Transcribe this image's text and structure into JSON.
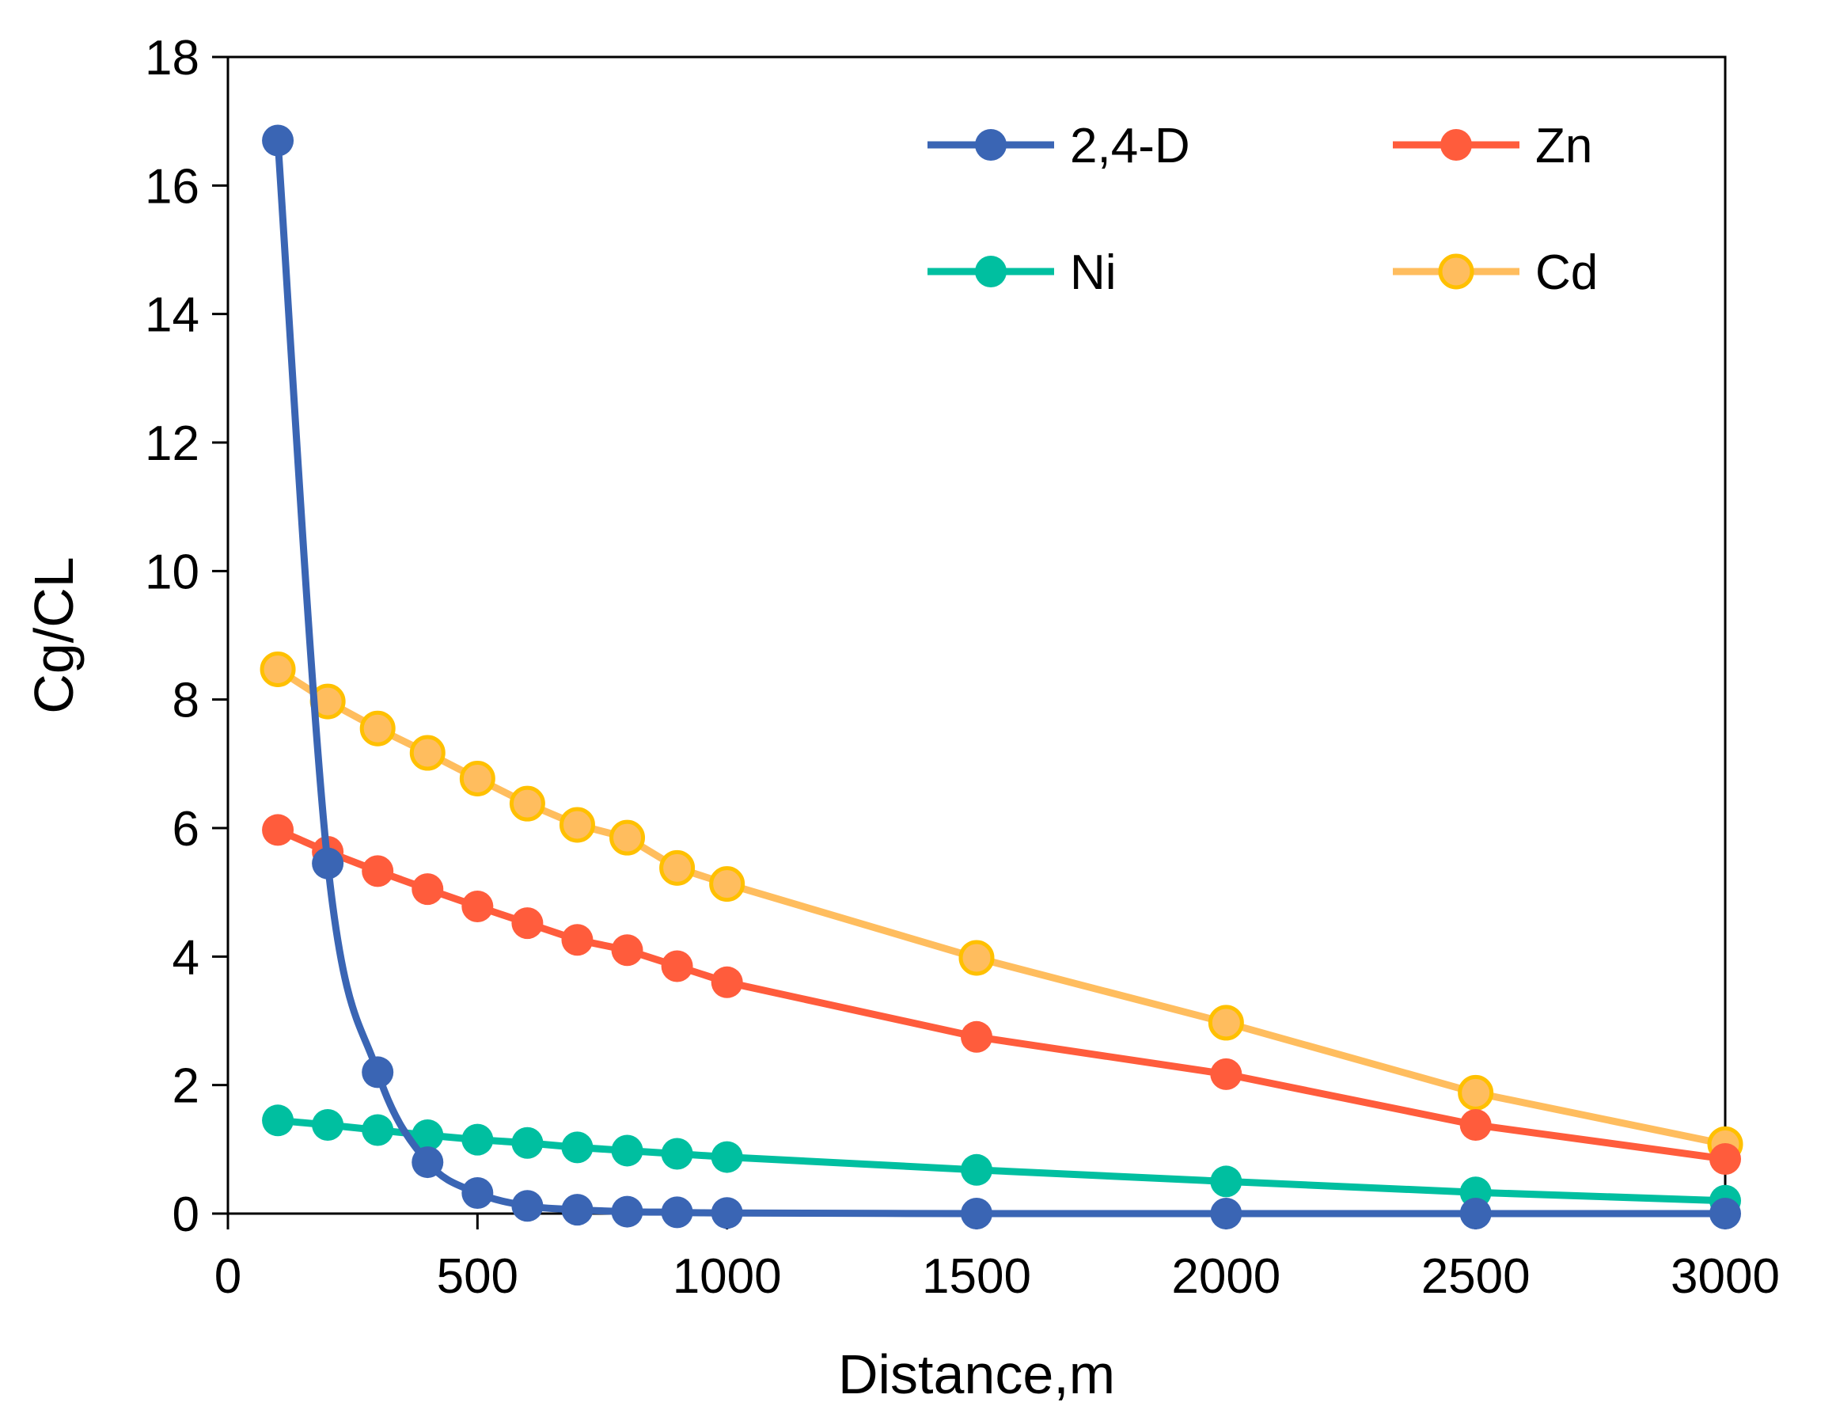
{
  "chart_data": {
    "type": "line",
    "title": "",
    "xlabel": "Distance,m",
    "ylabel": "Cg/CL",
    "xlim": [
      0,
      3000
    ],
    "ylim": [
      0,
      18
    ],
    "x_ticks": [
      "0",
      "500",
      "1000",
      "1500",
      "2000",
      "2500",
      "3000"
    ],
    "y_ticks": [
      "0",
      "2",
      "4",
      "6",
      "8",
      "10",
      "12",
      "14",
      "16",
      "18"
    ],
    "grid": false,
    "legend_position": "top-right",
    "x": [
      100,
      200,
      300,
      400,
      500,
      600,
      700,
      800,
      900,
      1000,
      1500,
      2000,
      2500,
      3000
    ],
    "series": [
      {
        "name": "2,4-D",
        "color": "#3a65b4",
        "values": [
          16.7,
          5.45,
          2.2,
          0.8,
          0.32,
          0.12,
          0.06,
          0.03,
          0.02,
          0.01,
          0.0,
          0.0,
          0.0,
          0.0
        ],
        "smooth": true
      },
      {
        "name": "Zn",
        "color": "#ff5c3c",
        "values": [
          5.97,
          5.63,
          5.33,
          5.05,
          4.78,
          4.52,
          4.26,
          4.1,
          3.85,
          3.6,
          2.75,
          2.17,
          1.38,
          0.85
        ],
        "smooth": false
      },
      {
        "name": "Ni",
        "color": "#00bfa0",
        "values": [
          1.45,
          1.38,
          1.3,
          1.22,
          1.15,
          1.1,
          1.03,
          0.98,
          0.93,
          0.88,
          0.68,
          0.5,
          0.33,
          0.2
        ],
        "smooth": false
      },
      {
        "name": "Cd",
        "color": "#ffbd5e",
        "marker_edge": "#ffc000",
        "values": [
          8.47,
          7.97,
          7.55,
          7.17,
          6.77,
          6.38,
          6.05,
          5.85,
          5.38,
          5.13,
          3.98,
          2.97,
          1.88,
          1.08
        ],
        "smooth": false
      }
    ]
  }
}
